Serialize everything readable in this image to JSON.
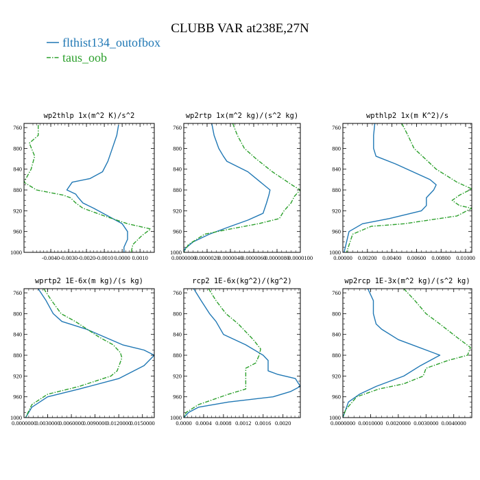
{
  "figure": {
    "title": "CLUBB VAR at238E,27N",
    "colors": {
      "flthist134_outofbox": "#1f77b4",
      "taus_oob": "#2ca02c"
    },
    "legend": [
      {
        "name": "flthist134_outofbox",
        "color": "#1f77b4",
        "dash": "solid"
      },
      {
        "name": "taus_oob",
        "color": "#2ca02c",
        "dash": "dashdot"
      }
    ]
  },
  "chart_data": [
    {
      "type": "line",
      "title": "wp2thlp  1x(m^2 K)/s^2",
      "xlim": [
        -0.0055,
        0.0018
      ],
      "ylim": [
        1000,
        752
      ],
      "xticks": [
        -0.004,
        -0.003,
        -0.002,
        -0.001,
        0.0,
        0.001
      ],
      "xtick_labels": [
        "-0.0040",
        "-0.0030",
        "-0.0020",
        "-0.0010",
        "0.0000",
        "0.0010"
      ],
      "yticks": [
        760,
        800,
        840,
        880,
        920,
        960,
        1000
      ],
      "ytick_labels": [
        "760",
        "800",
        "840",
        "880",
        "920",
        "960",
        "1000"
      ],
      "grid": false,
      "series": [
        {
          "name": "flthist134_outofbox",
          "x": [
            -0.0002,
            -0.0003,
            -0.0006,
            -0.0008,
            -0.0011,
            -0.0018,
            -0.0028,
            -0.0031,
            -0.0026,
            -0.0025,
            -0.0022,
            -0.0016,
            -0.0008,
            0.0,
            0.0003,
            0.0003,
            0.0001,
            0.0001
          ],
          "y": [
            755,
            775,
            805,
            825,
            845,
            858,
            865,
            880,
            888,
            893,
            905,
            915,
            930,
            945,
            960,
            975,
            990,
            1000
          ]
        },
        {
          "name": "taus_oob",
          "x": [
            -0.0047,
            -0.0047,
            -0.0052,
            -0.0049,
            -0.0051,
            -0.0055,
            -0.0048,
            -0.0033,
            -0.0029,
            -0.0026,
            -0.0024,
            -0.0022,
            -0.001,
            0.0003,
            0.0016,
            0.0011,
            0.0006,
            0.0005
          ],
          "y": [
            755,
            775,
            790,
            815,
            840,
            865,
            880,
            890,
            895,
            905,
            910,
            915,
            930,
            945,
            955,
            968,
            985,
            1000
          ]
        }
      ]
    },
    {
      "type": "line",
      "title": "wp2rtp  1x(m^2 kg)/(s^2 kg)",
      "xlim": [
        0.0,
        1e-05
      ],
      "ylim": [
        1000,
        752
      ],
      "xticks": [
        0.0,
        2e-06,
        4e-06,
        6e-06,
        8e-06,
        1e-05
      ],
      "xtick_labels": [
        "0.0000000",
        "0.0000020",
        "0.0000040",
        "0.0000060",
        "0.0000080",
        "0.0000100"
      ],
      "yticks": [
        760,
        800,
        840,
        880,
        920,
        960,
        1000
      ],
      "ytick_labels": [
        "760",
        "800",
        "840",
        "880",
        "920",
        "960",
        "1000"
      ],
      "grid": false,
      "series": [
        {
          "name": "flthist134_outofbox",
          "x": [
            2.4e-06,
            2.6e-06,
            3e-06,
            3.4e-06,
            3.7e-06,
            5.5e-06,
            7.4e-06,
            7.3e-06,
            7.1e-06,
            6.8e-06,
            5.5e-06,
            4e-06,
            2.2e-06,
            8e-07,
            1e-07,
            0.0
          ],
          "y": [
            752,
            775,
            800,
            815,
            825,
            845,
            880,
            890,
            905,
            925,
            938,
            950,
            965,
            980,
            993,
            1000
          ]
        },
        {
          "name": "taus_oob",
          "x": [
            4.2e-06,
            4.6e-06,
            5.2e-06,
            6.2e-06,
            7.6e-06,
            9.4e-06,
            1e-05,
            9.5e-06,
            9.2e-06,
            8.8e-06,
            8.6e-06,
            8.2e-06,
            6.4e-06,
            4e-06,
            1.8e-06,
            4e-07,
            0.0
          ],
          "y": [
            752,
            775,
            800,
            820,
            845,
            872,
            880,
            892,
            905,
            915,
            920,
            935,
            945,
            955,
            965,
            985,
            1000
          ]
        }
      ]
    },
    {
      "type": "line",
      "title": "wpthlp2  1x(m K^2)/s",
      "xlim": [
        0.0,
        0.0105
      ],
      "ylim": [
        1000,
        752
      ],
      "xticks": [
        0.0,
        0.002,
        0.004,
        0.006,
        0.008,
        0.01
      ],
      "xtick_labels": [
        "0.00000",
        "0.00200",
        "0.00400",
        "0.00600",
        "0.00800",
        "0.01000"
      ],
      "yticks": [
        760,
        800,
        840,
        880,
        920,
        960,
        1000
      ],
      "ytick_labels": [
        "760",
        "800",
        "840",
        "880",
        "920",
        "960",
        "1000"
      ],
      "grid": false,
      "series": [
        {
          "name": "flthist134_outofbox",
          "x": [
            0.0026,
            0.0025,
            0.0025,
            0.0027,
            0.0043,
            0.0071,
            0.0076,
            0.0074,
            0.0068,
            0.0068,
            0.0064,
            0.0038,
            0.0016,
            0.0005,
            0.0001
          ],
          "y": [
            752,
            775,
            800,
            815,
            830,
            860,
            870,
            880,
            895,
            910,
            920,
            935,
            945,
            960,
            1000
          ]
        },
        {
          "name": "taus_oob",
          "x": [
            0.0048,
            0.0053,
            0.0058,
            0.0067,
            0.0076,
            0.0093,
            0.0105,
            0.0095,
            0.0089,
            0.0095,
            0.0105,
            0.0093,
            0.005,
            0.0023,
            0.0008,
            0.0003
          ],
          "y": [
            752,
            775,
            800,
            820,
            840,
            865,
            878,
            890,
            900,
            910,
            915,
            930,
            945,
            950,
            965,
            1000
          ]
        }
      ]
    },
    {
      "type": "line",
      "title": "wprtp2  1E-6x(m kg)/(s kg)",
      "xlim": [
        0.0,
        0.0165
      ],
      "ylim": [
        1000,
        752
      ],
      "xticks": [
        0.0,
        0.003,
        0.006,
        0.009,
        0.012,
        0.015
      ],
      "xtick_labels": [
        "0.0000000",
        "0.0030000",
        "0.0060000",
        "0.0090000",
        "0.0120000",
        "0.0150000"
      ],
      "yticks": [
        760,
        800,
        840,
        880,
        920,
        960,
        1000
      ],
      "ytick_labels": [
        "760",
        "800",
        "840",
        "880",
        "920",
        "960",
        "1000"
      ],
      "grid": false,
      "series": [
        {
          "name": "flthist134_outofbox",
          "x": [
            0.0018,
            0.0028,
            0.0037,
            0.0048,
            0.0079,
            0.0125,
            0.0152,
            0.0165,
            0.0152,
            0.012,
            0.007,
            0.003,
            0.001,
            0.0002
          ],
          "y": [
            752,
            775,
            800,
            815,
            830,
            860,
            870,
            880,
            900,
            925,
            945,
            960,
            980,
            1000
          ]
        },
        {
          "name": "taus_oob",
          "x": [
            0.0025,
            0.0035,
            0.0047,
            0.0065,
            0.008,
            0.0095,
            0.0113,
            0.0122,
            0.0124,
            0.0118,
            0.011,
            0.007,
            0.003,
            0.001,
            0.0002
          ],
          "y": [
            752,
            775,
            800,
            815,
            830,
            845,
            860,
            875,
            885,
            910,
            920,
            940,
            955,
            975,
            1000
          ]
        }
      ]
    },
    {
      "type": "line",
      "title": "rcp2  1E-6x(kg^2)/(kg^2)",
      "xlim": [
        0.0,
        0.00235
      ],
      "ylim": [
        1000,
        752
      ],
      "xticks": [
        0.0,
        0.0004,
        0.0008,
        0.0012,
        0.0016,
        0.002
      ],
      "xtick_labels": [
        "0.0000",
        "0.0004",
        "0.0008",
        "0.0012",
        "0.0016",
        "0.0020"
      ],
      "yticks": [
        760,
        800,
        840,
        880,
        920,
        960,
        1000
      ],
      "ytick_labels": [
        "760",
        "800",
        "840",
        "880",
        "920",
        "960",
        "1000"
      ],
      "grid": false,
      "series": [
        {
          "name": "flthist134_outofbox",
          "x": [
            0.0002,
            0.00035,
            0.00052,
            0.00065,
            0.0008,
            0.00125,
            0.0016,
            0.0017,
            0.0017,
            0.0019,
            0.00225,
            0.00235,
            0.00215,
            0.0018,
            0.0009,
            0.0003,
            0.0001,
            0.0
          ],
          "y": [
            752,
            775,
            800,
            815,
            840,
            860,
            880,
            890,
            910,
            917,
            925,
            940,
            950,
            960,
            970,
            980,
            990,
            1000
          ]
        },
        {
          "name": "taus_oob",
          "x": [
            0.0005,
            0.00065,
            0.00085,
            0.0011,
            0.0014,
            0.00155,
            0.00152,
            0.00145,
            0.00125,
            0.00125,
            0.00125,
            0.0009,
            0.0003,
            5e-05,
            0.0
          ],
          "y": [
            752,
            775,
            800,
            820,
            850,
            868,
            880,
            895,
            905,
            918,
            945,
            955,
            975,
            990,
            1000
          ]
        }
      ]
    },
    {
      "type": "line",
      "title": "wp2rcp  1E-3x(m^2 kg)/(s^2 kg)",
      "xlim": [
        0.0,
        0.00465
      ],
      "ylim": [
        1000,
        752
      ],
      "xticks": [
        0.0,
        0.001,
        0.002,
        0.003,
        0.004
      ],
      "xtick_labels": [
        "0.0000000",
        "0.0010000",
        "0.0020000",
        "0.0030000",
        "0.0040000"
      ],
      "yticks": [
        760,
        800,
        840,
        880,
        920,
        960,
        1000
      ],
      "ytick_labels": [
        "760",
        "800",
        "840",
        "880",
        "920",
        "960",
        "1000"
      ],
      "grid": false,
      "series": [
        {
          "name": "flthist134_outofbox",
          "x": [
            0.0009,
            0.0011,
            0.0011,
            0.0012,
            0.0014,
            0.002,
            0.0035,
            0.0028,
            0.0022,
            0.0012,
            0.0006,
            0.0002,
            0.0
          ],
          "y": [
            752,
            775,
            800,
            820,
            830,
            850,
            880,
            900,
            920,
            940,
            955,
            970,
            1000
          ]
        },
        {
          "name": "taus_oob",
          "x": [
            0.0022,
            0.0026,
            0.003,
            0.0035,
            0.0041,
            0.0046,
            0.0045,
            0.0038,
            0.003,
            0.0029,
            0.0022,
            0.0013,
            0.0005,
            0.0001,
            0.0
          ],
          "y": [
            752,
            775,
            800,
            820,
            845,
            865,
            880,
            890,
            905,
            920,
            935,
            945,
            960,
            985,
            1000
          ]
        }
      ]
    }
  ]
}
